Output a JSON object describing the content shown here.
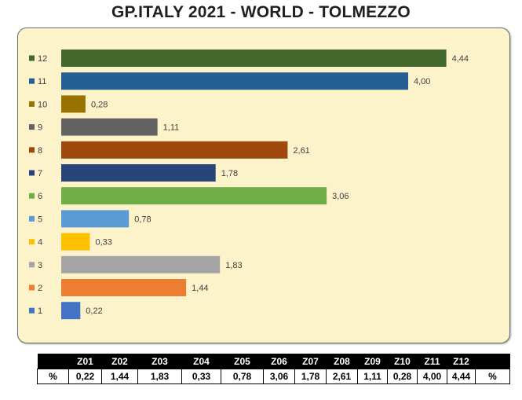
{
  "title": "GP.ITALY 2021 - WORLD - TOLMEZZO",
  "chart_data": {
    "type": "bar",
    "orientation": "horizontal",
    "title": "GP.ITALY 2021 - WORLD - TOLMEZZO",
    "categories": [
      "1",
      "2",
      "3",
      "4",
      "5",
      "6",
      "7",
      "8",
      "9",
      "10",
      "11",
      "12"
    ],
    "values": [
      0.22,
      1.44,
      1.83,
      0.33,
      0.78,
      3.06,
      1.78,
      2.61,
      1.11,
      0.28,
      4.0,
      4.44
    ],
    "value_labels": [
      "0,22",
      "1,44",
      "1,83",
      "0,33",
      "0,78",
      "3,06",
      "1,78",
      "2,61",
      "1,11",
      "0,28",
      "4,00",
      "4,44"
    ],
    "colors": [
      "#4472c4",
      "#ed7d31",
      "#a5a5a5",
      "#ffc000",
      "#5b9bd5",
      "#70ad47",
      "#264478",
      "#9e480e",
      "#636363",
      "#997300",
      "#255e91",
      "#43682b"
    ],
    "legend_position": "left",
    "grid": false,
    "xlim": [
      0,
      4.6
    ]
  },
  "table": {
    "headers": [
      "",
      "Z01",
      "Z02",
      "Z03",
      "Z04",
      "Z05",
      "Z06",
      "Z07",
      "Z08",
      "Z09",
      "Z10",
      "Z11",
      "Z12",
      ""
    ],
    "row": [
      "%",
      "0,22",
      "1,44",
      "1,83",
      "0,33",
      "0,78",
      "3,06",
      "1,78",
      "2,61",
      "1,11",
      "0,28",
      "4,00",
      "4,44",
      "%"
    ]
  }
}
